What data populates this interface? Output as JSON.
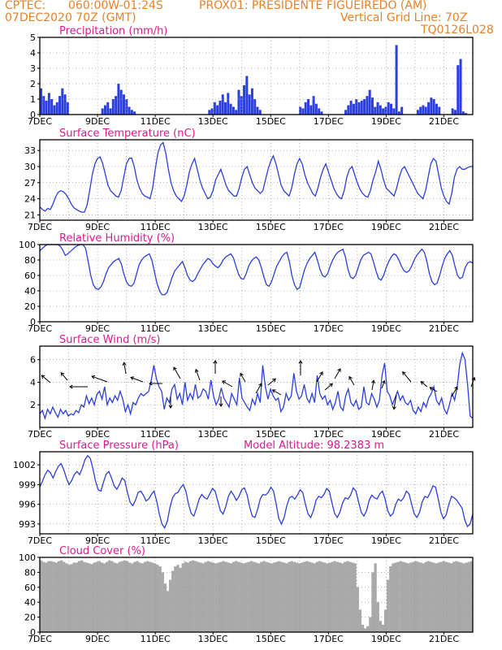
{
  "header": {
    "org": "CPTEC:",
    "coords": "060:00W-01:24S",
    "station": "PROX01: PRESIDENTE FIGUEIREDO (AM)",
    "init": "07DEC2020 70Z (GMT)",
    "vgrid": "Vertical Grid Line: 70Z",
    "model": "TQ0126L028"
  },
  "colors": {
    "header": "#e8822a",
    "title": "#e0198f",
    "line": "#2b3fe0",
    "cloud": "#a9a9a9",
    "grid": "#9a9a9a"
  },
  "chart_data": [
    {
      "type": "bar",
      "title": "Precipitation (mm/h)",
      "x_tick_labels": [
        "7DEC",
        "9DEC",
        "11DEC",
        "13DEC",
        "15DEC",
        "17DEC",
        "19DEC",
        "21DEC"
      ],
      "y_ticks": [
        "0",
        "1",
        "2",
        "3",
        "4",
        "5"
      ],
      "ylim": [
        0,
        5
      ],
      "x_range_days": [
        0,
        15
      ],
      "values_3h": [
        1.7,
        1.2,
        0.9,
        1.4,
        1.0,
        0.6,
        0.8,
        1.2,
        1.7,
        1.3,
        0.8,
        0,
        0,
        0,
        0,
        0,
        0,
        0,
        0,
        0,
        0,
        0,
        0,
        0.4,
        0.6,
        0.8,
        0.4,
        1.0,
        1.2,
        2.0,
        1.6,
        1.3,
        1.0,
        0.5,
        0.3,
        0.2,
        0,
        0,
        0,
        0,
        0,
        0,
        0,
        0,
        0,
        0,
        0,
        0,
        0,
        0,
        0,
        0,
        0,
        0,
        0,
        0,
        0,
        0,
        0,
        0,
        0,
        0,
        0,
        0.3,
        0.4,
        0.8,
        0.6,
        0.9,
        1.3,
        0.8,
        1.4,
        0.7,
        0.5,
        0.3,
        1.6,
        1.2,
        1.9,
        2.5,
        1.3,
        1.7,
        1.0,
        0.5,
        0.3,
        0,
        0,
        0,
        0,
        0,
        0,
        0,
        0,
        0,
        0,
        0,
        0,
        0,
        0,
        0.5,
        0.4,
        0.8,
        1.0,
        0.6,
        1.2,
        0.7,
        0.4,
        0.2,
        0,
        0,
        0,
        0,
        0,
        0,
        0,
        0,
        0.3,
        0.6,
        0.9,
        0.7,
        1.0,
        0.8,
        0.9,
        1.0,
        1.2,
        1.6,
        1.1,
        0.5,
        0.8,
        0.6,
        0.4,
        0.5,
        0.8,
        0.7,
        0.4,
        4.5,
        0.2,
        0.5,
        0,
        0,
        0,
        0,
        0,
        0.3,
        0.5,
        0.6,
        0.5,
        0.8,
        1.1,
        1.0,
        0.7,
        0.5,
        0,
        0,
        0,
        0,
        0.4,
        0.3,
        3.2,
        3.6,
        0.2,
        0.1,
        0,
        0
      ]
    },
    {
      "type": "line",
      "title": "Surface Temperature (nC)",
      "x_tick_labels": [
        "7DEC",
        "9DEC",
        "11DEC",
        "13DEC",
        "15DEC",
        "17DEC",
        "19DEC",
        "21DEC"
      ],
      "y_ticks": [
        "21",
        "24",
        "27",
        "30",
        "33"
      ],
      "ylim": [
        20,
        35
      ],
      "values_3h": [
        22.5,
        22.0,
        21.7,
        22.2,
        22.0,
        23.0,
        24.3,
        25.2,
        25.5,
        25.3,
        24.8,
        24.0,
        23.0,
        22.3,
        22.0,
        21.7,
        21.5,
        21.5,
        22.8,
        25.5,
        28.5,
        30.5,
        31.5,
        31.8,
        30.5,
        28.5,
        26.5,
        25.5,
        25.0,
        24.5,
        24.3,
        25.5,
        28.0,
        30.5,
        31.5,
        31.6,
        30.0,
        27.5,
        26.0,
        25.0,
        24.5,
        24.3,
        24.0,
        26.0,
        29.5,
        32.5,
        34.0,
        34.5,
        32.5,
        29.5,
        27.0,
        25.5,
        24.5,
        24.0,
        23.5,
        24.5,
        26.5,
        29.0,
        30.5,
        31.5,
        29.5,
        27.5,
        26.0,
        25.0,
        24.0,
        24.3,
        25.5,
        27.5,
        28.5,
        29.5,
        28.0,
        26.5,
        25.5,
        25.0,
        24.5,
        24.5,
        26.0,
        28.0,
        29.5,
        30.0,
        28.5,
        27.0,
        26.0,
        25.5,
        25.0,
        25.5,
        27.5,
        29.5,
        31.0,
        32.0,
        30.5,
        28.5,
        26.5,
        25.5,
        25.0,
        24.5,
        26.0,
        28.5,
        30.5,
        31.5,
        30.5,
        28.5,
        27.0,
        26.0,
        25.0,
        24.5,
        26.0,
        28.0,
        29.5,
        30.5,
        29.0,
        27.5,
        26.0,
        25.0,
        24.3,
        24.0,
        25.5,
        28.0,
        29.5,
        30.0,
        28.5,
        27.0,
        25.8,
        25.0,
        24.5,
        24.3,
        25.5,
        27.5,
        29.0,
        31.0,
        29.5,
        27.5,
        26.0,
        25.5,
        25.0,
        24.5,
        26.0,
        28.0,
        29.5,
        30.0,
        29.0,
        28.0,
        27.0,
        26.0,
        25.0,
        24.5,
        24.0,
        25.5,
        28.0,
        30.5,
        31.5,
        31.0,
        28.5,
        26.0,
        24.5,
        23.5,
        23.0,
        25.0,
        28.0,
        29.5,
        30.0,
        29.5,
        29.5,
        29.8,
        30.0,
        30.0
      ]
    },
    {
      "type": "line",
      "title": "Relative Humidity (%)",
      "x_tick_labels": [
        "7DEC",
        "9DEC",
        "11DEC",
        "13DEC",
        "15DEC",
        "17DEC",
        "19DEC",
        "21DEC"
      ],
      "y_ticks": [
        "0",
        "20",
        "40",
        "60",
        "80",
        "100"
      ],
      "ylim": [
        0,
        100
      ],
      "values_3h": [
        92,
        95,
        98,
        100,
        100,
        100,
        100,
        100,
        98,
        93,
        86,
        88,
        91,
        94,
        97,
        99,
        100,
        100,
        95,
        78,
        60,
        48,
        43,
        42,
        45,
        52,
        62,
        70,
        74,
        78,
        80,
        82,
        75,
        62,
        52,
        47,
        46,
        50,
        62,
        74,
        80,
        84,
        86,
        88,
        80,
        65,
        50,
        40,
        35,
        35,
        38,
        48,
        58,
        66,
        70,
        74,
        78,
        70,
        60,
        54,
        52,
        55,
        62,
        68,
        74,
        78,
        82,
        80,
        75,
        72,
        70,
        74,
        80,
        84,
        86,
        88,
        83,
        72,
        62,
        56,
        55,
        62,
        72,
        78,
        82,
        84,
        80,
        70,
        58,
        48,
        46,
        52,
        62,
        72,
        78,
        84,
        88,
        90,
        78,
        60,
        48,
        42,
        44,
        56,
        68,
        76,
        82,
        86,
        90,
        80,
        68,
        60,
        58,
        62,
        72,
        80,
        86,
        90,
        92,
        94,
        84,
        68,
        58,
        56,
        60,
        70,
        80,
        86,
        88,
        90,
        88,
        78,
        66,
        56,
        54,
        60,
        70,
        78,
        84,
        88,
        86,
        80,
        72,
        66,
        64,
        66,
        72,
        80,
        86,
        90,
        94,
        90,
        78,
        62,
        52,
        48,
        50,
        60,
        72,
        82,
        88,
        92,
        86,
        72,
        60,
        56,
        58,
        70,
        76,
        78,
        76
      ]
    },
    {
      "type": "line",
      "title": "Surface Wind (m/s)",
      "x_tick_labels": [
        "7DEC",
        "9DEC",
        "11DEC",
        "13DEC",
        "15DEC",
        "17DEC",
        "19DEC",
        "21DEC"
      ],
      "y_ticks": [
        "2",
        "4",
        "6"
      ],
      "ylim": [
        0,
        7.2
      ],
      "values_3h": [
        1.2,
        1.5,
        0.8,
        1.6,
        1.2,
        1.8,
        1.3,
        0.9,
        1.6,
        1.2,
        1.5,
        1.0,
        1.2,
        1.1,
        1.5,
        1.3,
        2.0,
        1.8,
        2.8,
        2.1,
        2.6,
        2.0,
        2.9,
        3.2,
        2.5,
        3.6,
        2.0,
        2.6,
        2.2,
        2.8,
        2.4,
        3.2,
        2.5,
        1.4,
        2.0,
        1.2,
        2.2,
        2.0,
        2.6,
        3.0,
        2.8,
        3.0,
        3.2,
        4.2,
        5.5,
        4.3,
        3.6,
        3.2,
        1.6,
        2.6,
        2.2,
        3.4,
        3.8,
        2.5,
        3.0,
        2.0,
        4.0,
        2.4,
        3.0,
        2.5,
        3.8,
        2.6,
        2.8,
        3.4,
        3.2,
        2.5,
        4.2,
        2.8,
        2.0,
        2.5,
        3.5,
        2.6,
        2.2,
        1.8,
        3.0,
        2.5,
        2.0,
        4.4,
        2.6,
        2.2,
        1.8,
        1.5,
        2.5,
        2.0,
        3.0,
        2.2,
        5.5,
        3.6,
        2.5,
        3.4,
        2.8,
        2.4,
        2.6,
        1.4,
        1.8,
        3.0,
        2.4,
        2.8,
        4.8,
        3.2,
        2.5,
        2.8,
        3.8,
        2.6,
        2.2,
        3.0,
        2.2,
        4.6,
        3.0,
        2.5,
        2.8,
        2.0,
        2.4,
        1.6,
        2.2,
        3.2,
        1.8,
        1.5,
        2.8,
        3.4,
        2.2,
        1.9,
        2.4,
        1.6,
        1.8,
        3.6,
        2.2,
        2.0,
        3.0,
        2.5,
        1.8,
        2.4,
        4.6,
        5.7,
        3.2,
        2.8,
        2.0,
        2.6,
        3.2,
        2.4,
        2.8,
        2.2,
        2.0,
        2.4,
        1.5,
        1.2,
        1.8,
        1.4,
        2.2,
        1.8,
        2.6,
        3.0,
        3.6,
        2.4,
        2.0,
        2.6,
        1.6,
        1.2,
        2.0,
        3.0,
        2.4,
        3.6,
        5.6,
        6.6,
        6.0,
        3.8,
        1.0,
        0.8
      ]
    },
    {
      "type": "line",
      "title": "Surface Pressure (hPa)",
      "annotation": "Model Altitude: 98.2383 m",
      "x_tick_labels": [
        "7DEC",
        "9DEC",
        "11DEC",
        "13DEC",
        "15DEC",
        "17DEC",
        "19DEC",
        "21DEC"
      ],
      "y_ticks": [
        "993",
        "996",
        "999",
        "1002"
      ],
      "ylim": [
        991.5,
        1004
      ],
      "values_3h": [
        998.6,
        999.5,
        1000.5,
        1001.2,
        1000.8,
        1000.0,
        1001.0,
        1001.8,
        1002.2,
        1001.3,
        1000.0,
        999.0,
        999.6,
        1000.5,
        1001.0,
        1000.5,
        1001.5,
        1002.8,
        1003.4,
        1003.0,
        1001.4,
        999.5,
        998.2,
        998.0,
        999.4,
        1000.6,
        1001.0,
        1000.0,
        998.8,
        998.3,
        999.0,
        1000.0,
        999.6,
        997.8,
        996.3,
        995.8,
        996.6,
        997.8,
        998.0,
        997.4,
        996.5,
        996.8,
        997.5,
        998.0,
        996.5,
        994.5,
        993.0,
        992.4,
        993.4,
        995.5,
        997.0,
        997.6,
        997.8,
        998.5,
        999.0,
        998.0,
        996.0,
        994.6,
        994.2,
        995.4,
        996.8,
        997.5,
        997.0,
        996.8,
        997.6,
        998.4,
        998.0,
        996.5,
        995.0,
        994.5,
        995.6,
        997.2,
        998.0,
        997.4,
        996.6,
        997.2,
        998.2,
        998.5,
        997.5,
        995.6,
        994.2,
        994.0,
        995.2,
        996.8,
        997.5,
        997.4,
        997.8,
        998.6,
        998.0,
        996.0,
        993.8,
        993.0,
        994.0,
        995.8,
        997.0,
        997.2,
        996.8,
        997.4,
        998.2,
        997.8,
        996.0,
        994.5,
        994.0,
        995.0,
        996.6,
        997.2,
        997.0,
        997.5,
        998.4,
        998.0,
        996.2,
        994.6,
        994.0,
        994.8,
        996.2,
        997.0,
        996.8,
        997.4,
        998.5,
        998.0,
        996.4,
        994.8,
        994.2,
        995.0,
        996.6,
        997.4,
        997.0,
        996.8,
        997.6,
        998.0,
        996.8,
        995.0,
        994.2,
        994.6,
        996.0,
        996.8,
        996.5,
        997.0,
        998.0,
        997.6,
        996.0,
        994.5,
        994.0,
        994.8,
        996.4,
        997.2,
        997.0,
        997.8,
        998.8,
        998.6,
        996.8,
        994.8,
        993.8,
        994.4,
        996.0,
        997.2,
        997.0,
        996.6,
        996.0,
        995.4,
        993.6,
        992.6,
        993.0,
        994.5
      ]
    },
    {
      "type": "area",
      "title": "Cloud Cover (%)",
      "x_tick_labels": [
        "7DEC",
        "9DEC",
        "11DEC",
        "13DEC",
        "15DEC",
        "17DEC",
        "19DEC",
        "21DEC"
      ],
      "y_ticks": [
        "0",
        "20",
        "40",
        "60",
        "80",
        "100"
      ],
      "ylim": [
        0,
        100
      ],
      "values_3h": [
        96,
        94,
        93,
        95,
        95,
        94,
        93,
        95,
        96,
        94,
        92,
        90,
        91,
        93,
        93,
        95,
        96,
        94,
        93,
        92,
        91,
        93,
        94,
        95,
        93,
        92,
        94,
        96,
        95,
        93,
        92,
        94,
        95,
        96,
        95,
        93,
        92,
        94,
        95,
        93,
        92,
        94,
        95,
        94,
        93,
        92,
        90,
        88,
        80,
        65,
        55,
        70,
        82,
        88,
        90,
        86,
        92,
        94,
        93,
        95,
        96,
        95,
        94,
        93,
        92,
        94,
        95,
        94,
        93,
        92,
        93,
        94,
        95,
        94,
        93,
        92,
        94,
        95,
        94,
        93,
        92,
        93,
        94,
        95,
        94,
        93,
        92,
        94,
        95,
        94,
        93,
        92,
        93,
        94,
        95,
        94,
        93,
        92,
        94,
        95,
        94,
        93,
        92,
        93,
        94,
        95,
        94,
        93,
        92,
        94,
        95,
        94,
        93,
        92,
        93,
        94,
        95,
        94,
        93,
        92,
        94,
        95,
        94,
        93,
        92,
        60,
        30,
        10,
        5,
        8,
        20,
        80,
        92,
        40,
        15,
        10,
        30,
        70,
        88,
        92,
        93,
        94,
        95,
        94,
        93,
        92,
        93,
        94,
        95,
        94,
        93,
        92,
        94,
        95,
        94,
        93,
        92,
        93,
        94,
        95,
        94,
        93,
        92,
        94,
        95,
        94,
        93,
        92,
        93,
        94,
        95
      ]
    }
  ]
}
